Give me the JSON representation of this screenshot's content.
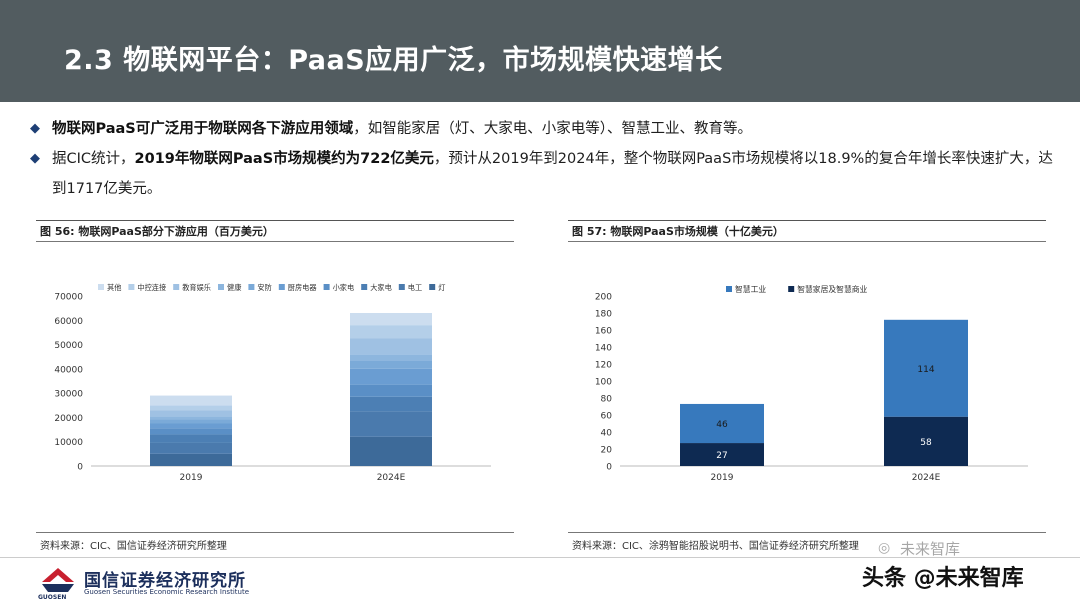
{
  "header": {
    "title": "2.3 物联网平台：PaaS应用广泛，市场规模快速增长"
  },
  "bullets": [
    {
      "bold": "物联网PaaS可广泛用于物联网各下游应用领域",
      "text": "，如智能家居（灯、大家电、小家电等）、智慧工业、教育等。"
    },
    {
      "pre": "据CIC统计，",
      "bold": "2019年物联网PaaS市场规模约为722亿美元",
      "text": "，预计从2019年到2024年，整个物联网PaaS市场规模将以18.9%的复合年增长率快速扩大，达到1717亿美元。"
    }
  ],
  "left_panel": {
    "caption": "图 56:  物联网PaaS部分下游应用（百万美元）",
    "source": "资料来源：CIC、国信证券经济研究所整理"
  },
  "right_panel": {
    "caption": "图 57:  物联网PaaS市场规模（十亿美元）",
    "source": "资料来源：CIC、涂鸦智能招股说明书、国信证券经济研究所整理"
  },
  "footer": {
    "company": "国信证券经济研究所",
    "company_en": "Guosen Securities Economic Research Institute",
    "logo_text": "GUOSEN"
  },
  "watermark": {
    "line1": "未来智库",
    "line2": "头条 @未来智库"
  },
  "chart_data": [
    {
      "type": "bar",
      "stacked": true,
      "categories": [
        "2019",
        "2024E"
      ],
      "ylim": [
        0,
        70000
      ],
      "yticks": [
        0,
        10000,
        20000,
        30000,
        40000,
        50000,
        60000,
        70000
      ],
      "legend_position": "top",
      "colors": [
        "#3d6a99",
        "#4a7aad",
        "#4c7fb4",
        "#5a8fc6",
        "#6a9dd2",
        "#7baad8",
        "#8db6de",
        "#9fc1e3",
        "#b4cfe9",
        "#ccddef"
      ],
      "series": [
        {
          "name": "灯",
          "values": [
            5000,
            12000
          ]
        },
        {
          "name": "电工",
          "values": [
            4500,
            10500
          ]
        },
        {
          "name": "大家电",
          "values": [
            3500,
            6000
          ]
        },
        {
          "name": "小家电",
          "values": [
            2500,
            5000
          ]
        },
        {
          "name": "厨房电器",
          "values": [
            2000,
            6500
          ]
        },
        {
          "name": "安防",
          "values": [
            1800,
            3500
          ]
        },
        {
          "name": "健康",
          "values": [
            1200,
            2500
          ]
        },
        {
          "name": "教育娱乐",
          "values": [
            2500,
            6500
          ]
        },
        {
          "name": "中控连接",
          "values": [
            2000,
            5500
          ]
        },
        {
          "name": "其他",
          "values": [
            4000,
            5000
          ]
        }
      ]
    },
    {
      "type": "bar",
      "stacked": true,
      "categories": [
        "2019",
        "2024E"
      ],
      "ylim": [
        0,
        200
      ],
      "yticks": [
        0,
        20,
        40,
        60,
        80,
        100,
        120,
        140,
        160,
        180,
        200
      ],
      "legend_position": "top",
      "series": [
        {
          "name": "智慧家居及智慧商业",
          "values": [
            27,
            58
          ],
          "color": "#0e2a52"
        },
        {
          "name": "智慧工业",
          "values": [
            46,
            114
          ],
          "color": "#3779bd"
        }
      ]
    }
  ]
}
